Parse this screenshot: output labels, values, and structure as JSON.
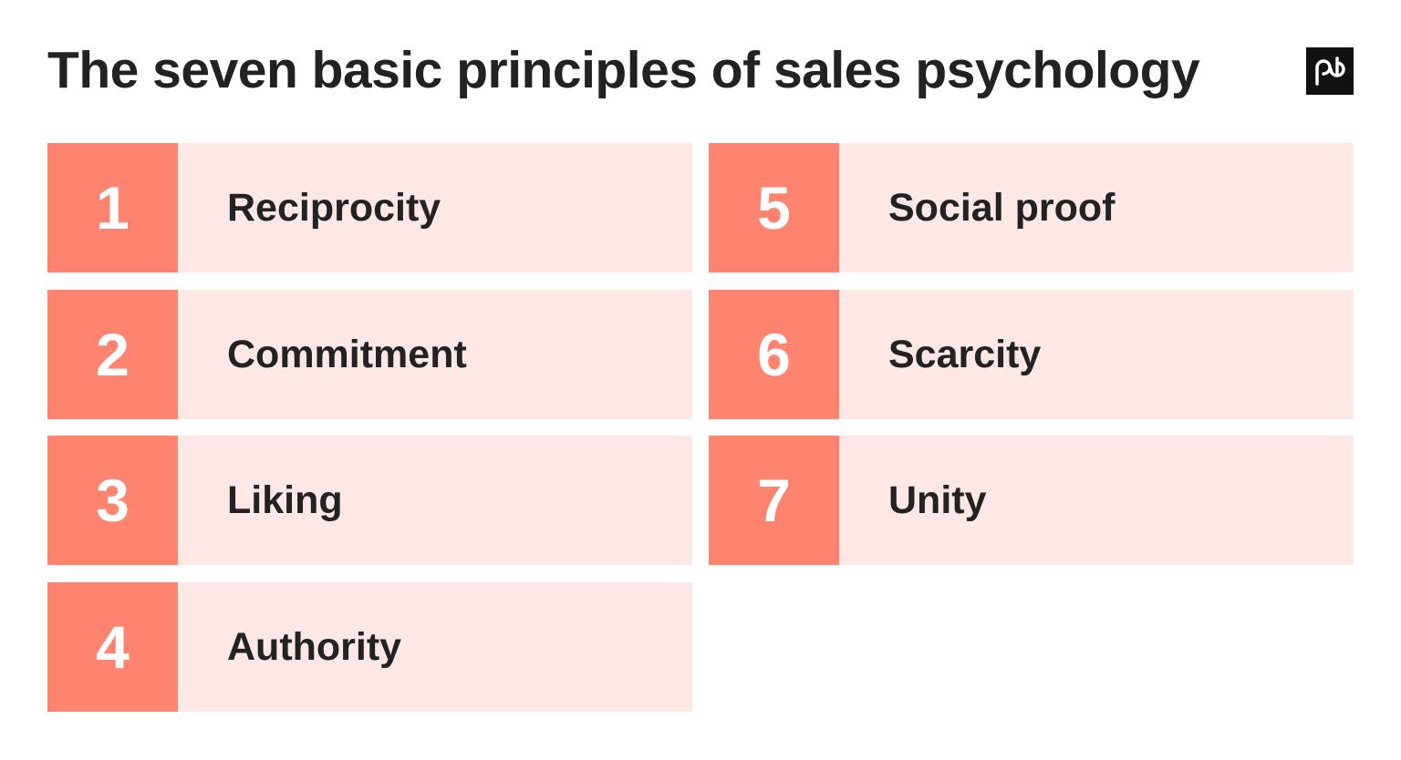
{
  "header": {
    "title": "The seven basic principles of sales psychology"
  },
  "items": [
    {
      "number": "1",
      "label": "Reciprocity"
    },
    {
      "number": "2",
      "label": "Commitment"
    },
    {
      "number": "3",
      "label": "Liking"
    },
    {
      "number": "4",
      "label": "Authority"
    },
    {
      "number": "5",
      "label": "Social proof"
    },
    {
      "number": "6",
      "label": "Scarcity"
    },
    {
      "number": "7",
      "label": "Unity"
    }
  ]
}
